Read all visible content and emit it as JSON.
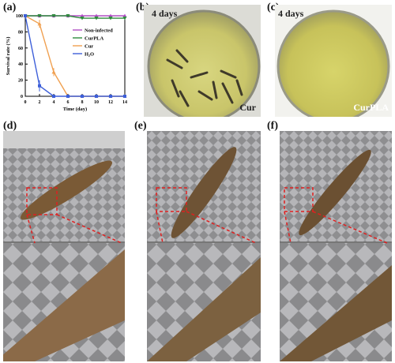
{
  "panels": {
    "a": "(a)",
    "b": "(b)",
    "c": "(c)",
    "d": "(d)",
    "e": "(e)",
    "f": "(f)"
  },
  "photos": {
    "b_days": "4 days",
    "b_caption": "Cur",
    "c_days": "4 days",
    "c_caption": "CurPLA"
  },
  "chart_data": {
    "type": "line",
    "title": "",
    "xlabel": "Time (day)",
    "ylabel": "Survival rate (%)",
    "xlim": [
      0,
      14
    ],
    "ylim": [
      0,
      100
    ],
    "xticks": [
      0,
      2,
      4,
      6,
      8,
      10,
      12,
      14
    ],
    "yticks": [
      0,
      20,
      40,
      60,
      80,
      100
    ],
    "legend_position": "right",
    "grid": false,
    "series": [
      {
        "name": "Non-infected",
        "color": "#b04fc4",
        "marker": "triangle",
        "x": [
          0,
          2,
          4,
          6,
          8,
          10,
          12,
          14
        ],
        "y": [
          100,
          100,
          100,
          100,
          100,
          100,
          100,
          100
        ]
      },
      {
        "name": "CurPLA",
        "color": "#2e8b3d",
        "marker": "triangle-down",
        "x": [
          0,
          2,
          4,
          6,
          8,
          10,
          12,
          14
        ],
        "y": [
          100,
          100,
          100,
          100,
          97,
          97,
          97,
          97
        ]
      },
      {
        "name": "Cur",
        "color": "#f0a050",
        "marker": "triangle",
        "x": [
          0,
          2,
          4,
          6,
          8,
          10,
          12,
          14
        ],
        "y": [
          100,
          90,
          30,
          0,
          0,
          0,
          0,
          0
        ]
      },
      {
        "name": "H₂O",
        "color": "#3d5fd9",
        "marker": "square",
        "x": [
          0,
          2,
          4,
          6,
          8,
          10,
          12,
          14
        ],
        "y": [
          100,
          13,
          0,
          0,
          0,
          0,
          0,
          0
        ]
      }
    ]
  }
}
